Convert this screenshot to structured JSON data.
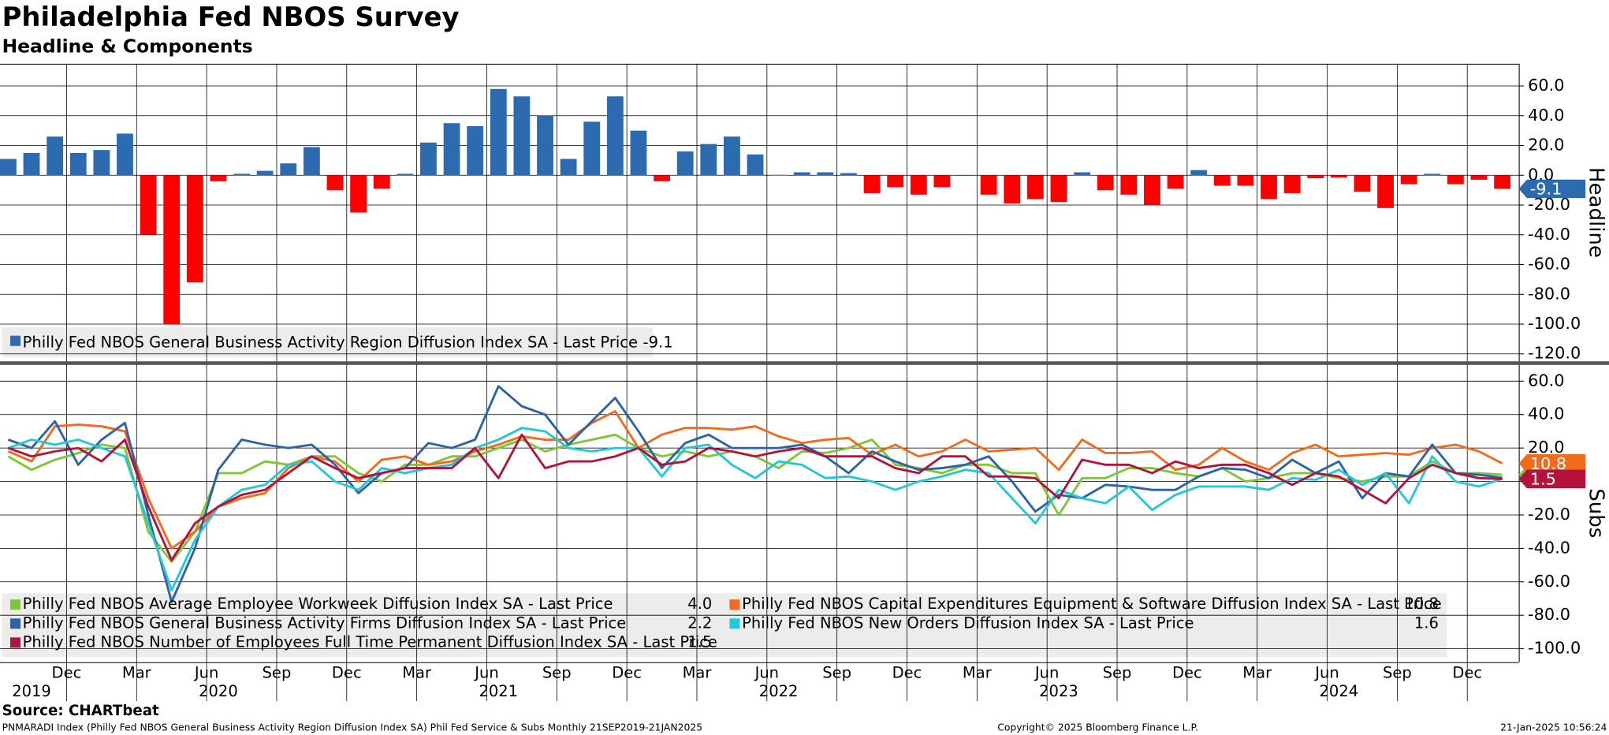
{
  "title": "Philadelphia Fed NBOS Survey",
  "subtitle": "Headline & Components",
  "source": "Source: CHARTbeat",
  "footer": {
    "left": "PNMARADI Index (Philly Fed NBOS General Business Activity Region Diffusion Index SA) Phil Fed Service & Subs  Monthly 21SEP2019-21JAN2025",
    "center": "Copyright© 2025 Bloomberg Finance L.P.",
    "right": "21-Jan-2025 10:56:24"
  },
  "chart_data": [
    {
      "type": "bar",
      "ylabel": "Headline",
      "grid": true,
      "legend": "bottom-left",
      "ylim": [
        -125,
        75
      ],
      "yticks": [
        {
          "value": 60,
          "label": "60.0"
        },
        {
          "value": 40,
          "label": "40.0"
        },
        {
          "value": 20,
          "label": "20.0"
        },
        {
          "value": 0,
          "label": "0.0"
        },
        {
          "value": -20,
          "label": "-20.0"
        },
        {
          "value": -40,
          "label": "-40.0"
        },
        {
          "value": -60,
          "label": "-60.0"
        },
        {
          "value": -80,
          "label": "-80.0"
        },
        {
          "value": -100,
          "label": "-100.0"
        },
        {
          "value": -120,
          "label": "-120.0"
        }
      ],
      "series": [
        {
          "name": "Philly Fed NBOS General Business Activity Region Diffusion Index SA - Last Price",
          "last_label": "-9.1",
          "color": "#2c6bb0",
          "negative_color": "#ff0000",
          "values": [
            11,
            15,
            26,
            15,
            17,
            28,
            -40,
            -100,
            -72,
            -4,
            1,
            3,
            8,
            19,
            -10,
            -25,
            -9,
            1,
            22,
            35,
            33,
            58,
            53,
            40,
            11,
            36,
            53,
            30,
            -4,
            16,
            21,
            26,
            14,
            0.3,
            2,
            2,
            1.5,
            -12,
            -8,
            -13,
            -8,
            0,
            -13,
            -19,
            -16,
            -18,
            2,
            -10,
            -13,
            -20,
            -9,
            3.5,
            -7,
            -7,
            -16,
            -12,
            -2,
            -1.5,
            -11,
            -22,
            -6,
            1,
            -6,
            -3,
            -9.1
          ]
        }
      ]
    },
    {
      "type": "line",
      "ylabel": "Subs",
      "grid": true,
      "legend": "bottom-left",
      "x": [
        "2019-09",
        "2019-10",
        "2019-11",
        "2019-12",
        "2020-01",
        "2020-02",
        "2020-03",
        "2020-04",
        "2020-05",
        "2020-06",
        "2020-07",
        "2020-08",
        "2020-09",
        "2020-10",
        "2020-11",
        "2020-12",
        "2021-01",
        "2021-02",
        "2021-03",
        "2021-04",
        "2021-05",
        "2021-06",
        "2021-07",
        "2021-08",
        "2021-09",
        "2021-10",
        "2021-11",
        "2021-12",
        "2022-01",
        "2022-02",
        "2022-03",
        "2022-04",
        "2022-05",
        "2022-06",
        "2022-07",
        "2022-08",
        "2022-09",
        "2022-10",
        "2022-11",
        "2022-12",
        "2023-01",
        "2023-02",
        "2023-03",
        "2023-04",
        "2023-05",
        "2023-06",
        "2023-07",
        "2023-08",
        "2023-09",
        "2023-10",
        "2023-11",
        "2023-12",
        "2024-01",
        "2024-02",
        "2024-03",
        "2024-04",
        "2024-05",
        "2024-06",
        "2024-07",
        "2024-08",
        "2024-09",
        "2024-10",
        "2024-11",
        "2024-12",
        "2025-01"
      ],
      "xticks": [
        {
          "value": "2019-12",
          "label": "Dec"
        },
        {
          "value": "2020-03",
          "label": "Mar"
        },
        {
          "value": "2020-06",
          "label": "Jun"
        },
        {
          "value": "2020-09",
          "label": "Sep"
        },
        {
          "value": "2020-12",
          "label": "Dec"
        },
        {
          "value": "2021-03",
          "label": "Mar"
        },
        {
          "value": "2021-06",
          "label": "Jun"
        },
        {
          "value": "2021-09",
          "label": "Sep"
        },
        {
          "value": "2021-12",
          "label": "Dec"
        },
        {
          "value": "2022-03",
          "label": "Mar"
        },
        {
          "value": "2022-06",
          "label": "Jun"
        },
        {
          "value": "2022-09",
          "label": "Sep"
        },
        {
          "value": "2022-12",
          "label": "Dec"
        },
        {
          "value": "2023-03",
          "label": "Mar"
        },
        {
          "value": "2023-06",
          "label": "Jun"
        },
        {
          "value": "2023-09",
          "label": "Sep"
        },
        {
          "value": "2023-12",
          "label": "Dec"
        },
        {
          "value": "2024-03",
          "label": "Mar"
        },
        {
          "value": "2024-06",
          "label": "Jun"
        },
        {
          "value": "2024-09",
          "label": "Sep"
        },
        {
          "value": "2024-12",
          "label": "Dec"
        }
      ],
      "years": [
        "2019",
        "2020",
        "2021",
        "2022",
        "2023",
        "2024"
      ],
      "ylim": [
        -108,
        70
      ],
      "yticks": [
        {
          "value": 60,
          "label": "60.0"
        },
        {
          "value": 40,
          "label": "40.0"
        },
        {
          "value": 20,
          "label": "20.0"
        },
        {
          "value": 0,
          "label": "0.0"
        },
        {
          "value": -20,
          "label": "-20.0"
        },
        {
          "value": -40,
          "label": "-40.0"
        },
        {
          "value": -60,
          "label": "-60.0"
        },
        {
          "value": -80,
          "label": "-80.0"
        },
        {
          "value": -100,
          "label": "-100.0"
        }
      ],
      "series": [
        {
          "name": "Philly Fed NBOS Average Employee Workweek Diffusion Index SA - Last Price",
          "last_label": "4.0",
          "color": "#7dc832",
          "values": [
            15,
            7,
            13,
            17,
            22,
            20,
            -30,
            -48,
            -30,
            5,
            5,
            12,
            10,
            15,
            15,
            5,
            0,
            10,
            10,
            15,
            15,
            20,
            25,
            18,
            22,
            25,
            28,
            20,
            15,
            18,
            15,
            18,
            15,
            8,
            18,
            17,
            20,
            25,
            10,
            8,
            5,
            10,
            10,
            5,
            5,
            -20,
            2,
            2,
            8,
            8,
            5,
            3,
            8,
            0,
            2,
            5,
            5,
            2,
            0,
            3,
            3,
            12,
            5,
            5,
            4.0
          ]
        },
        {
          "name": "Philly Fed NBOS Capital Expenditures Equipment & Software Diffusion Index SA - Last Price",
          "last_label": "10.8",
          "color": "#f26a1b",
          "values": [
            18,
            12,
            33,
            34,
            33,
            30,
            -10,
            -40,
            -30,
            -15,
            -10,
            -7,
            8,
            15,
            12,
            0,
            13,
            15,
            10,
            12,
            18,
            22,
            27,
            25,
            25,
            35,
            42,
            20,
            28,
            32,
            32,
            31,
            33,
            27,
            23,
            25,
            26,
            16,
            22,
            15,
            18,
            25,
            18,
            19,
            20,
            7,
            25,
            17,
            17,
            18,
            7,
            10,
            20,
            12,
            7,
            17,
            22,
            15,
            16,
            17,
            16,
            20,
            22,
            18,
            10.8
          ]
        },
        {
          "name": "Philly Fed NBOS General Business Activity Firms Diffusion Index SA - Last Price",
          "last_label": "2.2",
          "color": "#2b62a8",
          "values": [
            25,
            20,
            36,
            10,
            25,
            35,
            -20,
            -72,
            -40,
            7,
            25,
            22,
            20,
            22,
            10,
            -7,
            5,
            8,
            23,
            20,
            25,
            57,
            45,
            40,
            22,
            36,
            50,
            30,
            8,
            23,
            28,
            20,
            20,
            20,
            22,
            15,
            5,
            18,
            12,
            7,
            8,
            10,
            15,
            0,
            -18,
            -8,
            -10,
            -2,
            -3,
            -5,
            -5,
            3,
            8,
            7,
            2,
            13,
            5,
            12,
            -10,
            5,
            3,
            22,
            5,
            4,
            2.2
          ]
        },
        {
          "name": "Philly Fed NBOS New Orders Diffusion Index SA - Last Price",
          "last_label": "1.6",
          "color": "#22c8d8",
          "values": [
            20,
            25,
            22,
            25,
            20,
            15,
            -25,
            -65,
            -35,
            -15,
            -5,
            -2,
            10,
            12,
            0,
            -5,
            8,
            5,
            8,
            10,
            20,
            25,
            32,
            30,
            20,
            18,
            20,
            20,
            3,
            20,
            22,
            10,
            2,
            12,
            10,
            2,
            3,
            0,
            -5,
            0,
            3,
            7,
            5,
            -10,
            -25,
            -5,
            -10,
            -13,
            -3,
            -17,
            -8,
            -3,
            -3,
            -3,
            -5,
            2,
            1,
            7,
            -2,
            5,
            -13,
            15,
            0,
            -3,
            1.6
          ]
        },
        {
          "name": "Philly Fed NBOS Number of Employees Full Time Permanent Diffusion Index SA - Last Price",
          "last_label": "1.5",
          "color": "#b3123c",
          "values": [
            20,
            15,
            18,
            20,
            12,
            25,
            -15,
            -47,
            -25,
            -15,
            -8,
            -5,
            5,
            15,
            8,
            2,
            5,
            8,
            8,
            8,
            20,
            2,
            28,
            8,
            12,
            12,
            15,
            20,
            10,
            12,
            20,
            18,
            15,
            18,
            20,
            15,
            15,
            15,
            8,
            5,
            15,
            15,
            3,
            3,
            2,
            -10,
            13,
            10,
            10,
            5,
            12,
            8,
            10,
            10,
            5,
            -2,
            5,
            3,
            -5,
            -13,
            2,
            10,
            5,
            2,
            1.5
          ]
        }
      ]
    }
  ]
}
